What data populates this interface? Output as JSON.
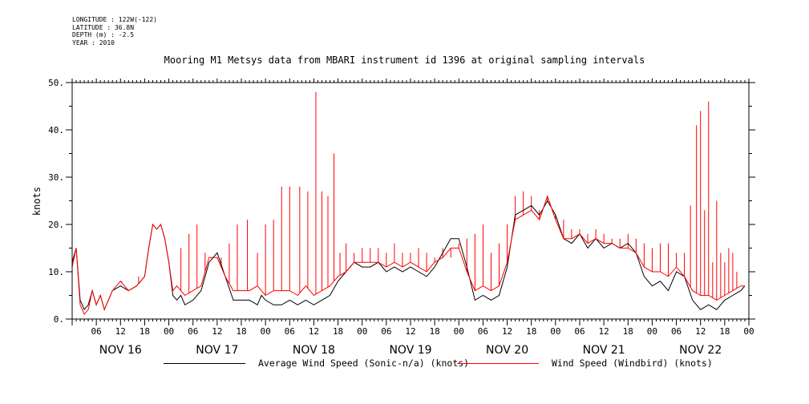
{
  "meta": {
    "longitude": "LONGITUDE : 122W(-122)",
    "latitude": "LATITUDE : 36.8N",
    "depth": "DEPTH (m) : -2.5",
    "year": "YEAR : 2010"
  },
  "chart_data": {
    "type": "line",
    "title": "Mooring M1 Metsys data from MBARI instrument id 1396 at original sampling intervals",
    "ylabel": "knots",
    "xlabel": "",
    "ylim": [
      0,
      50
    ],
    "yticks": [
      "0.",
      "10.",
      "20.",
      "30.",
      "40.",
      "50."
    ],
    "xlim_hours": [
      0,
      168
    ],
    "x_hour_ticks": [
      "06",
      "12",
      "18",
      "00",
      "06",
      "12",
      "18",
      "00",
      "06",
      "12",
      "18",
      "00",
      "06",
      "12",
      "18",
      "00",
      "06",
      "12",
      "18",
      "00",
      "06",
      "12",
      "18",
      "00",
      "06",
      "12",
      "18",
      "00"
    ],
    "day_labels": [
      "NOV 16",
      "NOV 17",
      "NOV 18",
      "NOV 19",
      "NOV 20",
      "NOV 21",
      "NOV 22"
    ],
    "grid": false,
    "legend_position": "bottom",
    "series": [
      {
        "name": "Average Wind Speed (Sonic-n/a) (knots)",
        "color": "#000000",
        "x": [
          0,
          1,
          2,
          3,
          4,
          5,
          6,
          7,
          8,
          9,
          10,
          12,
          14,
          16,
          18,
          19,
          20,
          21,
          22,
          23,
          24,
          25,
          26,
          27,
          28,
          30,
          32,
          34,
          36,
          38,
          40,
          42,
          44,
          46,
          47,
          48,
          50,
          52,
          54,
          56,
          58,
          60,
          62,
          64,
          66,
          68,
          70,
          72,
          74,
          76,
          78,
          80,
          82,
          84,
          86,
          88,
          90,
          92,
          94,
          96,
          98,
          100,
          102,
          104,
          106,
          108,
          110,
          112,
          114,
          116,
          118,
          120,
          122,
          124,
          126,
          128,
          130,
          132,
          134,
          136,
          138,
          140,
          142,
          144,
          146,
          148,
          150,
          152,
          154,
          156,
          158,
          160,
          162,
          164,
          166,
          167
        ],
        "values": [
          12,
          15,
          4,
          2,
          3,
          6,
          3,
          5,
          2,
          4,
          6,
          7,
          6,
          7,
          9,
          15,
          20,
          19,
          20,
          17,
          12,
          5,
          4,
          5,
          3,
          4,
          6,
          12,
          14,
          9,
          4,
          4,
          4,
          3,
          5,
          4,
          3,
          3,
          4,
          3,
          4,
          3,
          4,
          5,
          8,
          10,
          12,
          11,
          11,
          12,
          10,
          11,
          10,
          11,
          10,
          9,
          11,
          14,
          17,
          17,
          11,
          4,
          5,
          4,
          5,
          11,
          22,
          23,
          24,
          22,
          25,
          22,
          17,
          16,
          18,
          15,
          17,
          15,
          16,
          15,
          16,
          14,
          9,
          7,
          8,
          6,
          10,
          9,
          4,
          2,
          3,
          2,
          4,
          5,
          6,
          7
        ]
      },
      {
        "name": "Wind Speed (Windbird) (knots)",
        "color": "#ff0000",
        "x": [
          0,
          1,
          2,
          3,
          4,
          5,
          6,
          7,
          8,
          9,
          10,
          12,
          14,
          16,
          18,
          19,
          20,
          21,
          22,
          23,
          24,
          25,
          26,
          27,
          28,
          30,
          32,
          34,
          36,
          38,
          40,
          42,
          44,
          46,
          47,
          48,
          50,
          52,
          54,
          56,
          58,
          60,
          62,
          64,
          66,
          68,
          70,
          72,
          74,
          76,
          78,
          80,
          82,
          84,
          86,
          88,
          90,
          92,
          94,
          96,
          98,
          100,
          102,
          104,
          106,
          108,
          110,
          112,
          114,
          116,
          118,
          120,
          122,
          124,
          126,
          128,
          130,
          132,
          134,
          136,
          138,
          140,
          142,
          144,
          146,
          148,
          150,
          152,
          154,
          156,
          158,
          160,
          162,
          164,
          166,
          167
        ],
        "values": [
          11,
          15,
          3,
          1,
          2,
          6,
          3,
          5,
          2,
          4,
          6,
          8,
          6,
          7,
          9,
          15,
          20,
          19,
          20,
          17,
          12,
          6,
          7,
          6,
          5,
          6,
          7,
          13,
          13,
          9,
          6,
          6,
          6,
          7,
          6,
          5,
          6,
          6,
          6,
          5,
          7,
          5,
          6,
          7,
          9,
          10,
          12,
          12,
          12,
          12,
          11,
          12,
          11,
          12,
          11,
          10,
          12,
          13,
          15,
          15,
          10,
          6,
          7,
          6,
          7,
          12,
          21,
          22,
          23,
          21,
          26,
          21,
          17,
          17,
          18,
          16,
          17,
          16,
          16,
          15,
          15,
          14,
          11,
          10,
          10,
          9,
          11,
          9,
          6,
          5,
          5,
          4,
          5,
          6,
          7,
          7
        ]
      }
    ],
    "windbird_spikes": {
      "x": [
        12.3,
        16.5,
        27,
        29,
        31,
        33,
        35,
        37,
        39,
        41,
        43.5,
        46,
        48,
        50,
        52,
        54,
        56.5,
        58.5,
        60.5,
        62,
        63.5,
        65,
        66.5,
        68,
        70,
        72,
        74,
        76,
        78,
        80,
        82,
        84,
        86,
        88,
        90,
        92,
        94,
        96,
        98,
        100,
        102,
        104,
        106,
        108,
        110,
        112,
        114,
        116,
        118,
        120,
        122,
        124,
        126,
        128,
        130,
        132,
        134,
        136,
        138,
        140,
        142,
        144,
        146,
        148,
        150,
        152,
        153.5,
        155,
        156,
        157,
        158,
        159,
        160,
        161,
        162,
        163,
        164,
        165
      ],
      "values": [
        8,
        9,
        15,
        18,
        20,
        14,
        13,
        13,
        16,
        20,
        21,
        14,
        20,
        21,
        28,
        28,
        28,
        27,
        48,
        27,
        26,
        35,
        14,
        16,
        14,
        15,
        15,
        15,
        14,
        16,
        14,
        14,
        15,
        14,
        13,
        15,
        13,
        16,
        17,
        18,
        20,
        14,
        16,
        20,
        26,
        27,
        26,
        23,
        25,
        22,
        21,
        19,
        19,
        18,
        19,
        18,
        17,
        17,
        18,
        17,
        16,
        15,
        16,
        16,
        14,
        14,
        24,
        41,
        44,
        23,
        46,
        12,
        25,
        14,
        12,
        15,
        14,
        10
      ]
    }
  },
  "legend": {
    "series1_label": "Average Wind Speed (Sonic-n/a) (knots)",
    "series2_label": "Wind Speed (Windbird) (knots)"
  }
}
